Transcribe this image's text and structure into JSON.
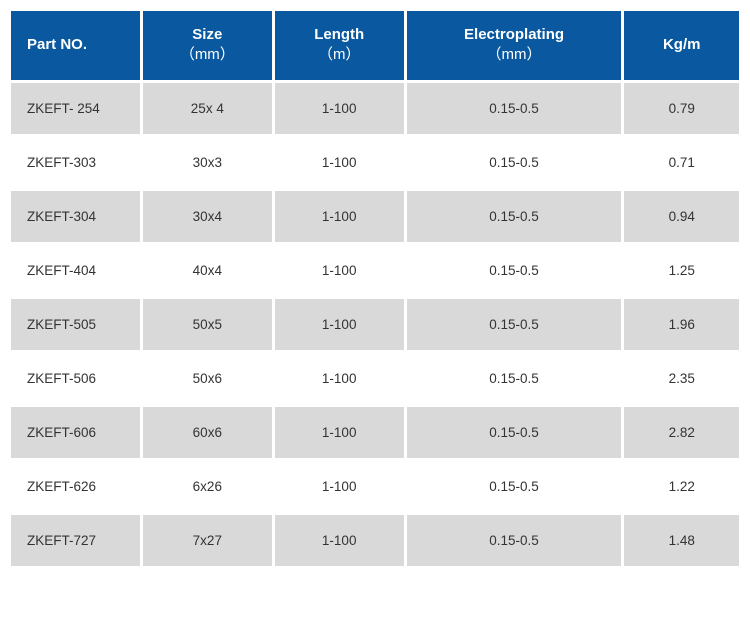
{
  "table": {
    "header_bg": "#0a589f",
    "header_color": "#ffffff",
    "row_odd_bg": "#d9d9d9",
    "row_even_bg": "#ffffff",
    "text_color": "#333333",
    "columns": [
      {
        "label": "Part NO.",
        "sub": ""
      },
      {
        "label": "Size",
        "sub": "（mm）"
      },
      {
        "label": "Length",
        "sub": "（m）"
      },
      {
        "label": "Electroplating",
        "sub": "（mm）"
      },
      {
        "label": "Kg/m",
        "sub": ""
      }
    ],
    "rows": [
      {
        "part": "ZKEFT- 254",
        "size": "25x 4",
        "length": "1-100",
        "plating": "0.15-0.5",
        "kg": "0.79"
      },
      {
        "part": "ZKEFT-303",
        "size": "30x3",
        "length": "1-100",
        "plating": "0.15-0.5",
        "kg": "0.71"
      },
      {
        "part": "ZKEFT-304",
        "size": "30x4",
        "length": "1-100",
        "plating": "0.15-0.5",
        "kg": "0.94"
      },
      {
        "part": "ZKEFT-404",
        "size": "40x4",
        "length": "1-100",
        "plating": "0.15-0.5",
        "kg": "1.25"
      },
      {
        "part": "ZKEFT-505",
        "size": "50x5",
        "length": "1-100",
        "plating": "0.15-0.5",
        "kg": "1.96"
      },
      {
        "part": "ZKEFT-506",
        "size": "50x6",
        "length": "1-100",
        "plating": "0.15-0.5",
        "kg": "2.35"
      },
      {
        "part": "ZKEFT-606",
        "size": "60x6",
        "length": "1-100",
        "plating": "0.15-0.5",
        "kg": "2.82"
      },
      {
        "part": "ZKEFT-626",
        "size": "6x26",
        "length": "1-100",
        "plating": "0.15-0.5",
        "kg": "1.22"
      },
      {
        "part": "ZKEFT-727",
        "size": "7x27",
        "length": "1-100",
        "plating": "0.15-0.5",
        "kg": "1.48"
      }
    ]
  }
}
